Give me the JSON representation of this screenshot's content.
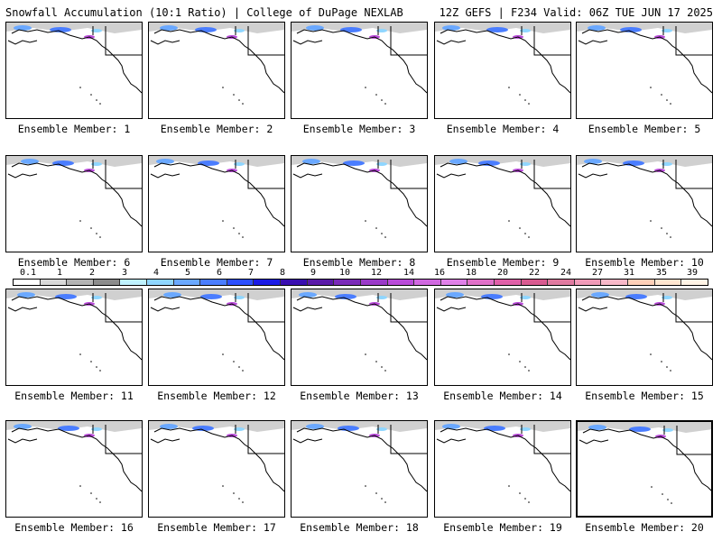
{
  "header": {
    "title_left": "Snowfall Accumulation (10:1 Ratio) | College of DuPage NEXLAB",
    "title_right": "12Z GEFS | F234 Valid: 06Z TUE JUN 17 2025"
  },
  "colorbar": {
    "ticks": [
      "0.1",
      "1",
      "2",
      "3",
      "4",
      "5",
      "6",
      "7",
      "8",
      "9",
      "10",
      "12",
      "14",
      "16",
      "18",
      "20",
      "22",
      "24",
      "27",
      "31",
      "35",
      "39"
    ],
    "colors": [
      "#ffffff",
      "#d9d9d9",
      "#b3b3b3",
      "#8c8c8c",
      "#bff2ff",
      "#8fd6ff",
      "#6aa8ff",
      "#4a7dff",
      "#2c4fff",
      "#1a1ae6",
      "#3a0fb0",
      "#5a1aa8",
      "#7a2ab8",
      "#9a3ac8",
      "#b84ad8",
      "#d068e0",
      "#e080e8",
      "#e070c8",
      "#e060a8",
      "#d85a90",
      "#e07aa0",
      "#f09ab8",
      "#f8b8c8",
      "#ffd0b8",
      "#ffe6d0",
      "#fff4e6"
    ]
  },
  "panels": [
    {
      "label": "Ensemble Member: 1"
    },
    {
      "label": "Ensemble Member: 2"
    },
    {
      "label": "Ensemble Member: 3"
    },
    {
      "label": "Ensemble Member: 4"
    },
    {
      "label": "Ensemble Member: 5"
    },
    {
      "label": "Ensemble Member: 6"
    },
    {
      "label": "Ensemble Member: 7"
    },
    {
      "label": "Ensemble Member: 8"
    },
    {
      "label": "Ensemble Member: 9"
    },
    {
      "label": "Ensemble Member: 10"
    },
    {
      "label": "Ensemble Member: 11"
    },
    {
      "label": "Ensemble Member: 12"
    },
    {
      "label": "Ensemble Member: 13"
    },
    {
      "label": "Ensemble Member: 14"
    },
    {
      "label": "Ensemble Member: 15"
    },
    {
      "label": "Ensemble Member: 16"
    },
    {
      "label": "Ensemble Member: 17"
    },
    {
      "label": "Ensemble Member: 18"
    },
    {
      "label": "Ensemble Member: 19"
    },
    {
      "label": "Ensemble Member: 20"
    }
  ]
}
